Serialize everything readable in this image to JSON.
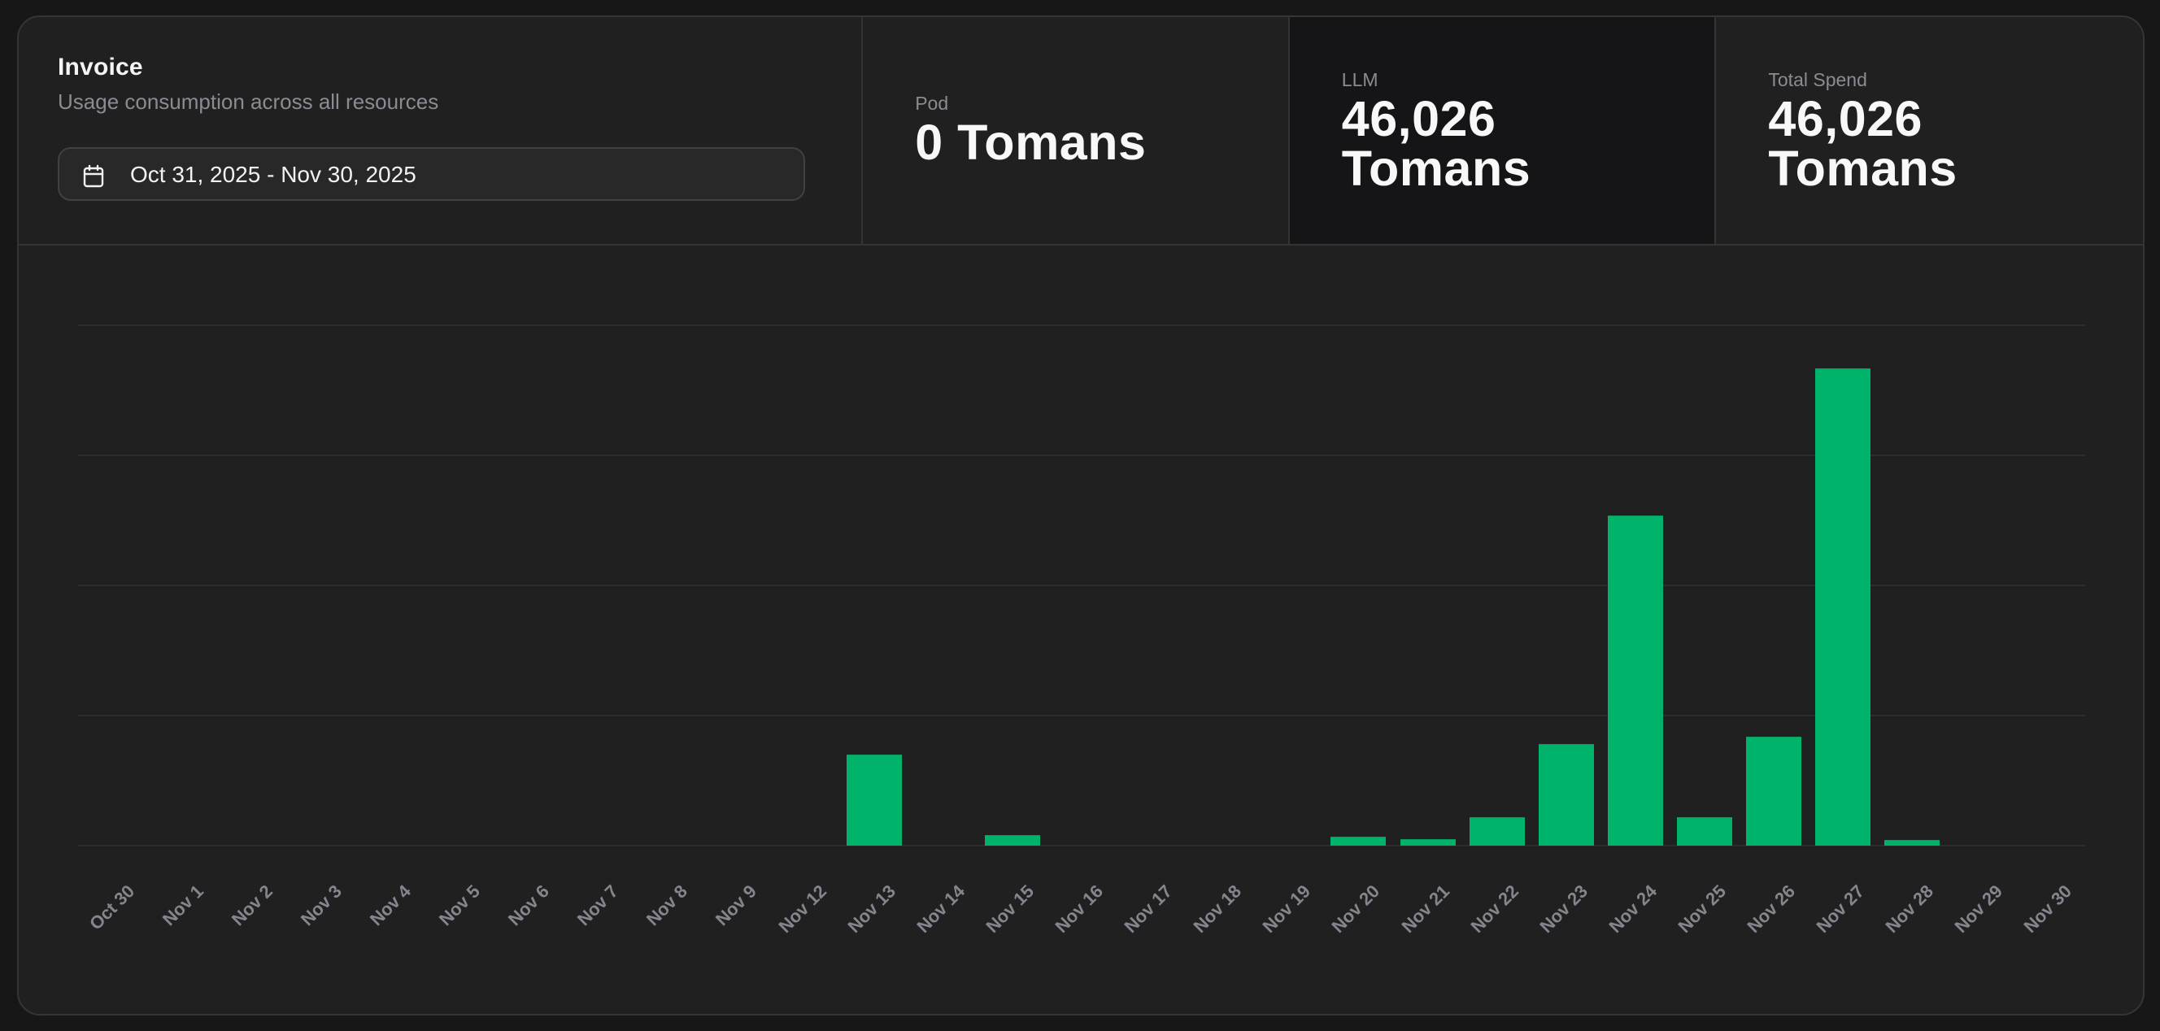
{
  "header": {
    "title": "Invoice",
    "subtitle": "Usage consumption across all resources",
    "date_range": "Oct 31, 2025 - Nov 30, 2025",
    "date_icon": "calendar-icon"
  },
  "stats": [
    {
      "label": "Pod",
      "value": "0 Tomans"
    },
    {
      "label": "LLM",
      "value": "46,026 Tomans"
    },
    {
      "label": "Total Spend",
      "value": "46,026 Tomans"
    }
  ],
  "colors": {
    "bar": "#00b36b",
    "card_bg": "#202020",
    "page_bg": "#171717",
    "highlight_bg": "#151517",
    "label": "#8b8b94"
  },
  "chart_data": {
    "type": "bar",
    "title": "",
    "xlabel": "",
    "ylabel": "",
    "ylim": [
      0,
      20000
    ],
    "yticks": [
      0,
      5000,
      10000,
      15000,
      20000
    ],
    "grid": true,
    "legend": "none",
    "categories": [
      "Oct 30",
      "Nov 1",
      "Nov 2",
      "Nov 3",
      "Nov 4",
      "Nov 5",
      "Nov 6",
      "Nov 7",
      "Nov 8",
      "Nov 9",
      "Nov 12",
      "Nov 13",
      "Nov 14",
      "Nov 15",
      "Nov 16",
      "Nov 17",
      "Nov 18",
      "Nov 19",
      "Nov 20",
      "Nov 21",
      "Nov 22",
      "Nov 23",
      "Nov 24",
      "Nov 25",
      "Nov 26",
      "Nov 27",
      "Nov 28",
      "Nov 29",
      "Nov 30"
    ],
    "series": [
      {
        "name": "LLM",
        "values": [
          0,
          0,
          0,
          0,
          0,
          0,
          0,
          0,
          0,
          0,
          0,
          3500,
          0,
          400,
          0,
          0,
          0,
          0,
          330,
          250,
          1090,
          3900,
          12700,
          1090,
          4180,
          18356,
          230,
          0,
          0
        ]
      }
    ]
  }
}
